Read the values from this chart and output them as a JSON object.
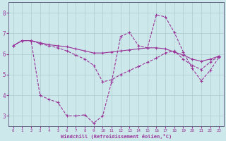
{
  "xlabel": "Windchill (Refroidissement éolien,°C)",
  "xlim": [
    -0.5,
    23.5
  ],
  "ylim": [
    2.5,
    8.5
  ],
  "yticks": [
    3,
    4,
    5,
    6,
    7,
    8
  ],
  "xticks": [
    0,
    1,
    2,
    3,
    4,
    5,
    6,
    7,
    8,
    9,
    10,
    11,
    12,
    13,
    14,
    15,
    16,
    17,
    18,
    19,
    20,
    21,
    22,
    23
  ],
  "bg_color": "#cce8ea",
  "grid_color": "#aacccc",
  "line_color": "#993399",
  "line1_x": [
    0,
    1,
    2,
    3,
    4,
    5,
    6,
    7,
    8,
    9,
    10,
    11,
    12,
    13,
    14,
    15,
    16,
    17,
    18,
    19,
    20,
    21,
    22,
    23
  ],
  "line1_y": [
    6.4,
    6.65,
    6.65,
    4.0,
    3.8,
    3.65,
    3.0,
    3.0,
    3.05,
    2.65,
    3.0,
    4.65,
    6.85,
    7.05,
    6.4,
    6.3,
    7.9,
    7.8,
    7.05,
    6.1,
    5.3,
    4.7,
    5.2,
    5.85
  ],
  "line2_x": [
    0,
    1,
    2,
    3,
    4,
    5,
    6,
    7,
    8,
    9,
    10,
    11,
    12,
    13,
    14,
    15,
    16,
    17,
    18,
    19,
    20,
    21,
    22,
    23
  ],
  "line2_y": [
    6.4,
    6.65,
    6.65,
    6.55,
    6.45,
    6.4,
    6.35,
    6.25,
    6.15,
    6.05,
    6.05,
    6.1,
    6.15,
    6.2,
    6.25,
    6.3,
    6.3,
    6.25,
    6.1,
    5.95,
    5.75,
    5.65,
    5.75,
    5.9
  ],
  "line3_x": [
    0,
    1,
    2,
    3,
    4,
    5,
    6,
    7,
    8,
    9,
    10,
    11,
    12,
    13,
    14,
    15,
    16,
    17,
    18,
    19,
    20,
    21,
    22,
    23
  ],
  "line3_y": [
    6.4,
    6.65,
    6.65,
    6.5,
    6.4,
    6.3,
    6.15,
    5.95,
    5.75,
    5.45,
    4.65,
    4.75,
    5.0,
    5.2,
    5.4,
    5.6,
    5.8,
    6.05,
    6.15,
    5.75,
    5.45,
    5.25,
    5.6,
    5.9
  ]
}
